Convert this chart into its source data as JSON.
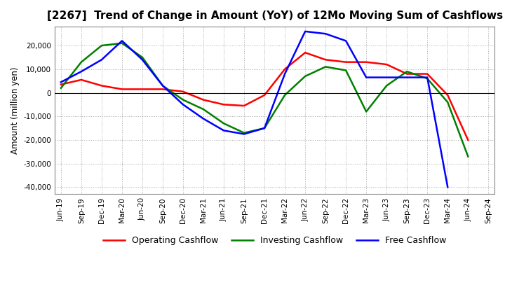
{
  "title": "[2267]  Trend of Change in Amount (YoY) of 12Mo Moving Sum of Cashflows",
  "ylabel": "Amount (million yen)",
  "ylim": [
    -43000,
    28000
  ],
  "yticks": [
    -40000,
    -30000,
    -20000,
    -10000,
    0,
    10000,
    20000
  ],
  "dates": [
    "Jun-19",
    "Sep-19",
    "Dec-19",
    "Mar-20",
    "Jun-20",
    "Sep-20",
    "Dec-20",
    "Mar-21",
    "Jun-21",
    "Sep-21",
    "Dec-21",
    "Mar-22",
    "Jun-22",
    "Sep-22",
    "Dec-22",
    "Mar-23",
    "Jun-23",
    "Sep-23",
    "Dec-23",
    "Mar-24",
    "Jun-24",
    "Sep-24"
  ],
  "operating": [
    3500,
    5500,
    3000,
    1500,
    1500,
    1500,
    500,
    -3000,
    -5000,
    -5500,
    -1000,
    10000,
    17000,
    14000,
    13000,
    13000,
    12000,
    8000,
    8000,
    -1000,
    -20000,
    null
  ],
  "investing": [
    2000,
    13000,
    20000,
    21000,
    15000,
    3000,
    -3000,
    -7000,
    -13000,
    -17000,
    -15000,
    -1000,
    7000,
    11000,
    9500,
    -8000,
    3000,
    9000,
    6000,
    -4000,
    -27000,
    null
  ],
  "free": [
    4500,
    9000,
    14000,
    22000,
    14000,
    3000,
    -5000,
    -11000,
    -16000,
    -17500,
    -15000,
    8000,
    26000,
    25000,
    22000,
    6500,
    6500,
    6500,
    6500,
    -40000,
    null,
    null
  ],
  "operating_color": "#ff0000",
  "investing_color": "#008000",
  "free_color": "#0000ff",
  "background_color": "#ffffff",
  "grid_color": "#aaaaaa",
  "title_fontsize": 11,
  "label_fontsize": 8.5,
  "tick_fontsize": 7.5,
  "legend_fontsize": 9,
  "linewidth": 1.8
}
